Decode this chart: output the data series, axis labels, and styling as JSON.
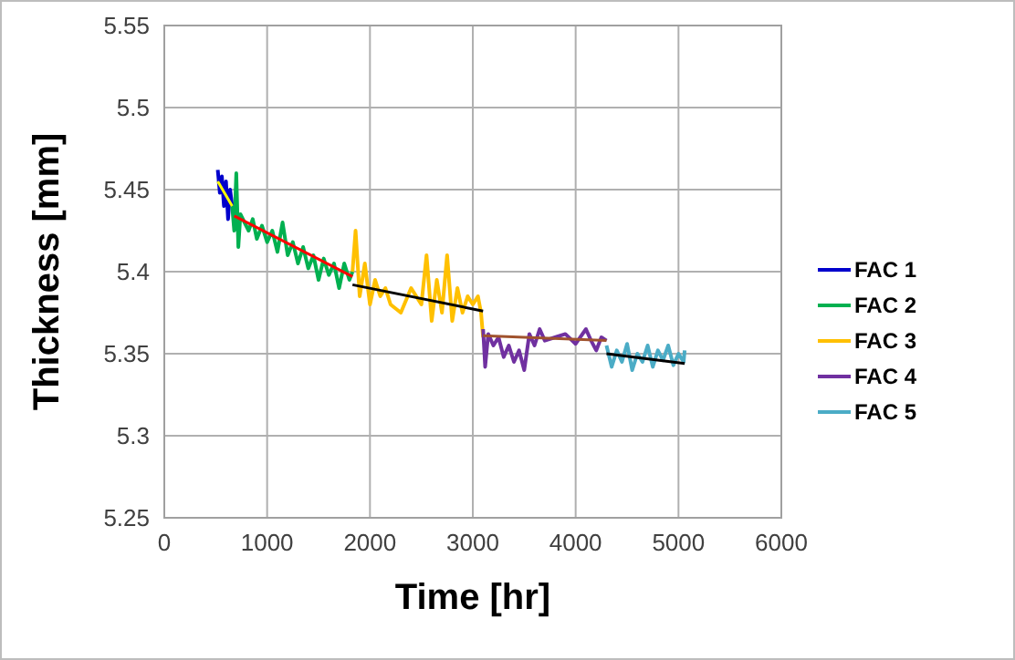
{
  "chart_data": {
    "type": "line",
    "xlabel": "Time [hr]",
    "ylabel": "Thickness [mm]",
    "xlim": [
      0,
      6000
    ],
    "xticks": [
      0,
      1000,
      2000,
      3000,
      4000,
      5000,
      6000
    ],
    "ylim": [
      5.25,
      5.55
    ],
    "yticks": [
      5.25,
      5.3,
      5.35,
      5.4,
      5.45,
      5.5,
      5.55
    ],
    "grid": true,
    "legend": "right",
    "marker": "none",
    "line_style": "solid",
    "series": [
      {
        "name": "FAC 1",
        "color": "#0000cc",
        "x": [
          520,
          540,
          560,
          580,
          600,
          620,
          640,
          660
        ],
        "values": [
          5.462,
          5.448,
          5.458,
          5.44,
          5.455,
          5.432,
          5.45,
          5.44
        ]
      },
      {
        "name": "FAC 2",
        "color": "#00b050",
        "x": [
          660,
          680,
          700,
          720,
          740,
          780,
          820,
          860,
          900,
          950,
          1000,
          1050,
          1100,
          1150,
          1200,
          1250,
          1300,
          1350,
          1400,
          1450,
          1500,
          1550,
          1600,
          1650,
          1700,
          1750,
          1800,
          1830
        ],
        "values": [
          5.44,
          5.425,
          5.46,
          5.415,
          5.435,
          5.43,
          5.425,
          5.432,
          5.42,
          5.428,
          5.418,
          5.425,
          5.412,
          5.43,
          5.41,
          5.418,
          5.405,
          5.415,
          5.402,
          5.41,
          5.395,
          5.408,
          5.398,
          5.405,
          5.39,
          5.405,
          5.395,
          5.4
        ]
      },
      {
        "name": "FAC 3",
        "color": "#ffc000",
        "x": [
          1830,
          1860,
          1900,
          1950,
          2000,
          2050,
          2100,
          2150,
          2200,
          2300,
          2400,
          2500,
          2550,
          2600,
          2650,
          2700,
          2750,
          2800,
          2850,
          2900,
          2950,
          3000,
          3050,
          3080,
          3100
        ],
        "values": [
          5.4,
          5.425,
          5.385,
          5.405,
          5.38,
          5.395,
          5.385,
          5.39,
          5.38,
          5.375,
          5.39,
          5.38,
          5.41,
          5.37,
          5.395,
          5.375,
          5.41,
          5.37,
          5.39,
          5.375,
          5.385,
          5.38,
          5.385,
          5.375,
          5.36
        ]
      },
      {
        "name": "FAC 4",
        "color": "#7030a0",
        "x": [
          3100,
          3120,
          3150,
          3200,
          3250,
          3300,
          3350,
          3400,
          3450,
          3500,
          3550,
          3600,
          3650,
          3700,
          3800,
          3900,
          4000,
          4100,
          4150,
          4200,
          4250,
          4300
        ],
        "values": [
          5.365,
          5.342,
          5.362,
          5.355,
          5.36,
          5.348,
          5.355,
          5.345,
          5.352,
          5.34,
          5.362,
          5.355,
          5.365,
          5.358,
          5.36,
          5.362,
          5.356,
          5.365,
          5.358,
          5.352,
          5.36,
          5.358
        ]
      },
      {
        "name": "FAC 5",
        "color": "#4bacc6",
        "x": [
          4300,
          4350,
          4400,
          4450,
          4500,
          4550,
          4600,
          4650,
          4700,
          4750,
          4800,
          4850,
          4900,
          4950,
          5000,
          5050,
          5060
        ],
        "values": [
          5.355,
          5.342,
          5.352,
          5.345,
          5.356,
          5.34,
          5.35,
          5.345,
          5.355,
          5.342,
          5.352,
          5.346,
          5.355,
          5.343,
          5.35,
          5.345,
          5.352
        ]
      },
      {
        "color": "#ffff00",
        "x": [
          520,
          660
        ],
        "values": [
          5.455,
          5.44
        ]
      },
      {
        "color": "#ff0000",
        "x": [
          680,
          1830
        ],
        "values": [
          5.434,
          5.397
        ]
      },
      {
        "color": "#000000",
        "x": [
          1830,
          3100
        ],
        "values": [
          5.392,
          5.376
        ]
      },
      {
        "color": "#a0522d",
        "x": [
          3100,
          4300
        ],
        "values": [
          5.361,
          5.358
        ]
      },
      {
        "color": "#000000",
        "x": [
          4300,
          5060
        ],
        "values": [
          5.35,
          5.344
        ]
      }
    ]
  }
}
